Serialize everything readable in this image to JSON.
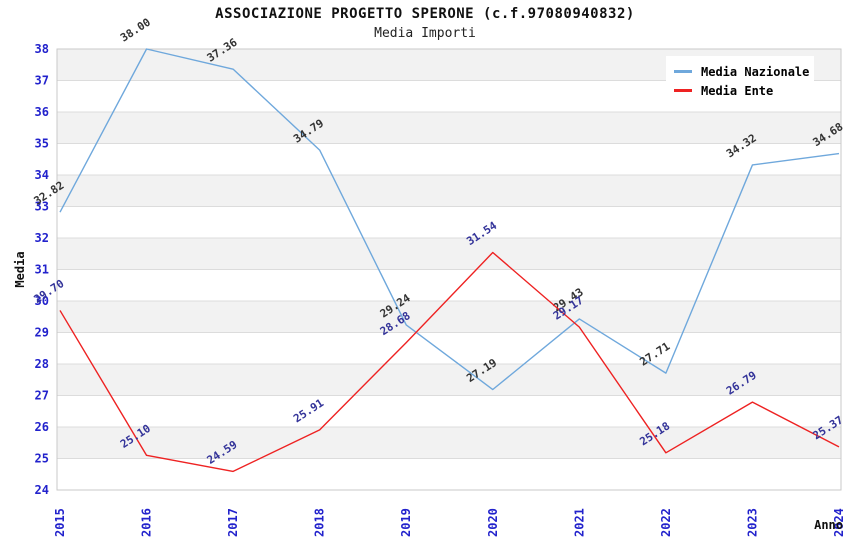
{
  "header": {
    "title": "ASSOCIAZIONE PROGETTO SPERONE (c.f.97080940832)",
    "subtitle": "Media Importi"
  },
  "chart_data": {
    "type": "line",
    "title": "ASSOCIAZIONE PROGETTO SPERONE (c.f.97080940832)",
    "subtitle": "Media Importi",
    "xlabel": "Anno",
    "ylabel": "Media",
    "x": [
      2015,
      2016,
      2017,
      2018,
      2019,
      2020,
      2021,
      2022,
      2023,
      2024
    ],
    "series": [
      {
        "name": "Media Nazionale",
        "color": "#6FA8DC",
        "label_color": "#333333",
        "values": [
          32.82,
          38.0,
          37.36,
          34.79,
          29.24,
          27.19,
          29.43,
          27.71,
          34.32,
          34.68
        ]
      },
      {
        "name": "Media Ente",
        "color": "#EE2222",
        "label_color": "#333399",
        "values": [
          29.7,
          25.1,
          24.59,
          25.91,
          28.68,
          31.54,
          29.17,
          25.18,
          26.79,
          25.37
        ]
      }
    ],
    "ylim": [
      24,
      38
    ],
    "y_tick_step": 1,
    "grid": true,
    "legend_position": "top-right",
    "tick_color": "#2222CC",
    "band_colors": [
      "#F2F2F2",
      "#FFFFFF"
    ],
    "gridline_color": "#DCDCDC",
    "frame_color": "#C9C9C9",
    "value_label_decimals": 2
  }
}
